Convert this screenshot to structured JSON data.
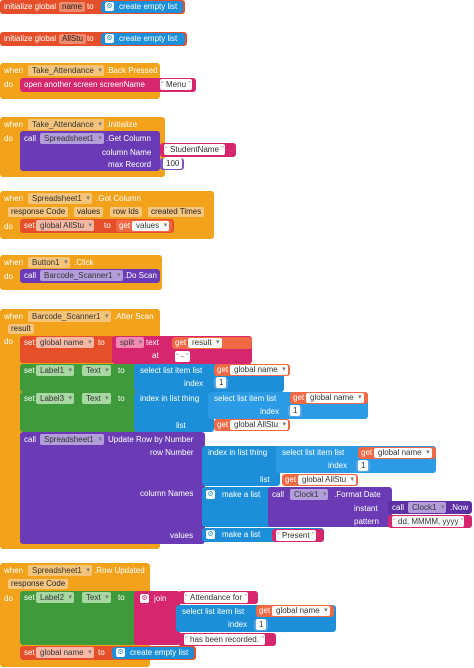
{
  "g1": {
    "kw": "initialize global",
    "name": "name",
    "to": "to",
    "val": "create empty list"
  },
  "g2": {
    "kw": "initialize global",
    "name": "AllStu",
    "to": "to",
    "val": "create empty list"
  },
  "e1": {
    "when": "when",
    "comp": "Take_Attendance",
    "event": ".Back Pressed",
    "do": "do",
    "stmt": "open another screen  screenName",
    "arg": "Menu"
  },
  "e2": {
    "when": "when",
    "comp": "Take_Attendance",
    "event": ".Initialize",
    "do": "do",
    "call": "call",
    "callcomp": "Spreadsheet1",
    "method": ".Get Column",
    "p1": "column Name",
    "p1v": "StudentName",
    "p2": "max Record",
    "p2v": "100"
  },
  "e3": {
    "when": "when",
    "comp": "Spreadsheet1",
    "event": ".Got Column",
    "params": [
      "response Code",
      "values",
      "row Ids",
      "created Times"
    ],
    "do": "do",
    "set": "set",
    "var": "global AllStu",
    "to": "to",
    "get": "get",
    "getv": "values"
  },
  "e4": {
    "when": "when",
    "comp": "Button1",
    "event": ".Click",
    "do": "do",
    "call": "call",
    "callcomp": "Barcode_Scanner1",
    "method": ".Do Scan"
  },
  "e5": {
    "when": "when",
    "comp": "Barcode_Scanner1",
    "event": ".After Scan",
    "param": "result",
    "do": "do",
    "set": "set",
    "setvar": "global name",
    "to": "to",
    "split": "split",
    "text": "text",
    "get": "get",
    "getres": "result",
    "at": "at",
    "atv": "-",
    "s2comp": "Label1",
    "s2prop": "Text",
    "sel": "select list item  list",
    "getname": "global name",
    "index": "index",
    "idx": "1",
    "s3comp": "Label3",
    "inlist": "index in list  thing",
    "list": "list",
    "getall": "global AllStu",
    "upd": "Update Row by Number",
    "rownum": "row Number",
    "colnames": "column Names",
    "makelist": "make a list",
    "clock": "Clock1",
    "fmt": ".Format Date",
    "instant": "instant",
    "now": ".Now",
    "pattern": "pattern",
    "patv": "dd, MMMM, yyyy",
    "values": "values",
    "present": "Present"
  },
  "e6": {
    "when": "when",
    "comp": "Spreadsheet1",
    "event": ".Row Updated",
    "param": "response Code",
    "do": "do",
    "set": "set",
    "comp2": "Label2",
    "prop": "Text",
    "to": "to",
    "join": "join",
    "att": "Attendance for",
    "sel": "select list item  list",
    "getname": "global name",
    "index": "index",
    "idx": "1",
    "rec": "has been recorded.",
    "set2var": "global name",
    "empty": "create empty list"
  }
}
